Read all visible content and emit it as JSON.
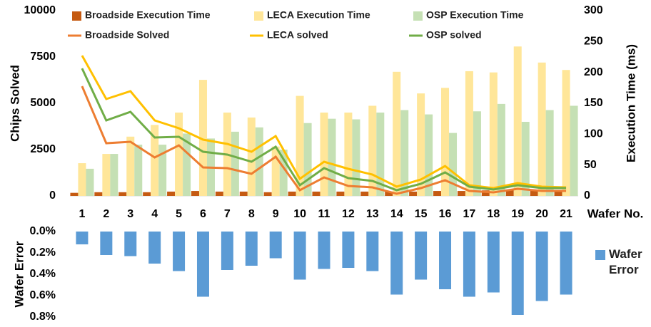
{
  "chart_data": [
    {
      "type": "bar",
      "categories": [
        "1",
        "2",
        "3",
        "4",
        "5",
        "6",
        "7",
        "8",
        "9",
        "10",
        "11",
        "12",
        "13",
        "14",
        "15",
        "16",
        "17",
        "18",
        "19",
        "20",
        "21"
      ],
      "xlabel": "Wafer No.",
      "ylabel": "Chips Solved",
      "y2label": "Execution Time (ms)",
      "ylim": [
        0,
        10000
      ],
      "yticks": [
        0,
        2500,
        5000,
        7500,
        10000
      ],
      "y2lim": [
        0,
        300
      ],
      "y2ticks": [
        0,
        50,
        100,
        150,
        200,
        250,
        300
      ],
      "series": [
        {
          "name": "Broadside Execution Time",
          "type": "bar",
          "axis": "y2",
          "color": "#c55a11",
          "values": [
            5,
            6,
            6,
            6,
            7,
            8,
            7,
            7,
            6,
            7,
            7,
            7,
            7,
            7,
            7,
            8,
            8,
            9,
            10,
            9,
            9
          ]
        },
        {
          "name": "LECA Execution Time",
          "type": "bar",
          "axis": "y2",
          "color": "#ffe699",
          "values": [
            53,
            68,
            96,
            115,
            135,
            188,
            135,
            127,
            80,
            162,
            135,
            135,
            146,
            201,
            166,
            175,
            202,
            200,
            242,
            216,
            204
          ]
        },
        {
          "name": "OSP Execution Time",
          "type": "bar",
          "axis": "y2",
          "color": "#c5e0b4",
          "values": [
            44,
            68,
            83,
            83,
            101,
            93,
            104,
            111,
            75,
            118,
            125,
            124,
            135,
            139,
            132,
            102,
            137,
            149,
            120,
            139,
            146
          ]
        },
        {
          "name": "Broadside Solved",
          "type": "line",
          "color": "#ed7d31",
          "values": [
            5923,
            2846,
            2923,
            2077,
            2730,
            1538,
            1500,
            1192,
            2115,
            308,
            1000,
            538,
            462,
            115,
            423,
            846,
            269,
            192,
            385,
            269,
            269
          ]
        },
        {
          "name": "LECA solved",
          "type": "line",
          "color": "#ffc000",
          "values": [
            7577,
            5231,
            5654,
            4077,
            3654,
            3038,
            2808,
            2385,
            3231,
            923,
            1846,
            1462,
            1154,
            500,
            885,
            1615,
            577,
            423,
            692,
            500,
            462
          ]
        },
        {
          "name": "OSP solved",
          "type": "line",
          "color": "#70ad47",
          "values": [
            6885,
            4077,
            4538,
            3154,
            3192,
            2385,
            2231,
            1846,
            2654,
            577,
            1500,
            962,
            808,
            308,
            654,
            1269,
            500,
            346,
            577,
            423,
            423
          ]
        }
      ]
    },
    {
      "type": "bar",
      "ylabel": "Wafer Error",
      "inverted": true,
      "ylim": [
        0,
        0.8
      ],
      "yticks": [
        {
          "value": 0,
          "label": "0.0%"
        },
        {
          "value": 0.2,
          "label": "0.2%"
        },
        {
          "value": 0.4,
          "label": "0.4%"
        },
        {
          "value": 0.6,
          "label": "0.6%"
        },
        {
          "value": 0.8,
          "label": "0.8%"
        }
      ],
      "series": [
        {
          "name": "Wafer Error",
          "color": "#5b9bd5",
          "values": [
            0.12,
            0.22,
            0.23,
            0.3,
            0.37,
            0.61,
            0.36,
            0.32,
            0.25,
            0.45,
            0.35,
            0.34,
            0.37,
            0.59,
            0.45,
            0.54,
            0.61,
            0.57,
            0.78,
            0.65,
            0.59
          ]
        }
      ]
    }
  ]
}
